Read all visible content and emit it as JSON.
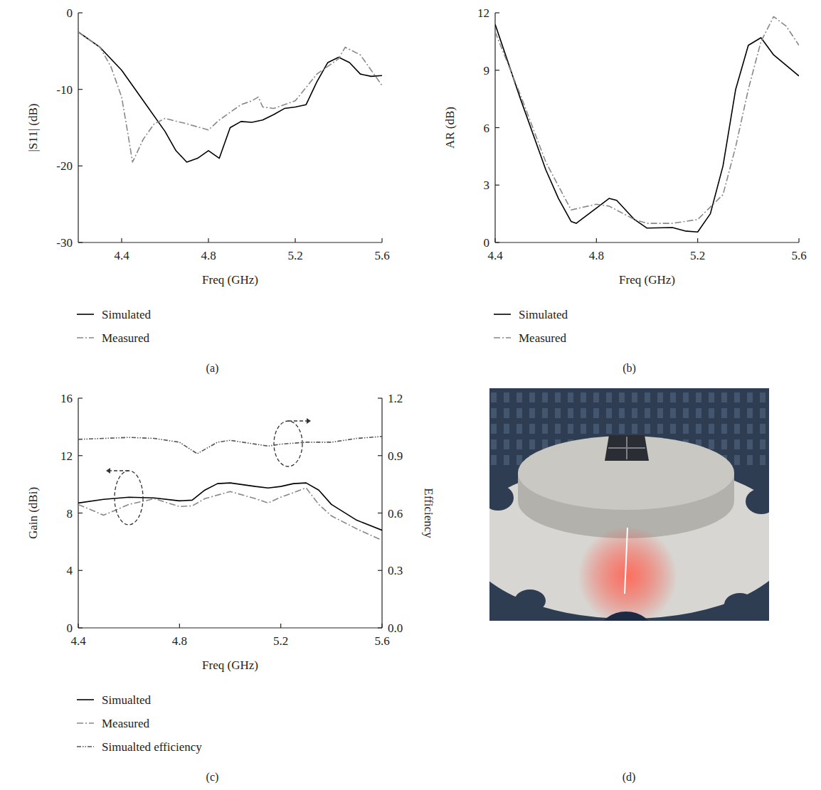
{
  "chart_data": [
    {
      "type": "line",
      "title": "(a)",
      "xlabel": "Freq (GHz)",
      "ylabel": "|S11| (dB)",
      "xlim": [
        4.2,
        5.6
      ],
      "ylim": [
        -30,
        0
      ],
      "xticks": [
        4.4,
        4.8,
        5.2,
        5.6
      ],
      "yticks": [
        -30,
        -20,
        -10,
        0
      ],
      "legend": "bottom",
      "series": [
        {
          "name": "Simulated",
          "color": "#000000",
          "line_style": "solid",
          "x": [
            4.2,
            4.3,
            4.4,
            4.5,
            4.6,
            4.65,
            4.7,
            4.75,
            4.8,
            4.85,
            4.9,
            4.95,
            5.0,
            5.05,
            5.1,
            5.15,
            5.2,
            5.25,
            5.3,
            5.35,
            5.4,
            5.45,
            5.5,
            5.55,
            5.6
          ],
          "values": [
            -2.5,
            -4.5,
            -7.5,
            -11.5,
            -15.5,
            -18,
            -19.5,
            -19,
            -18,
            -19,
            -15,
            -14.2,
            -14.3,
            -14,
            -13.3,
            -12.5,
            -12.3,
            -12,
            -9,
            -6.5,
            -5.8,
            -6.5,
            -8,
            -8.3,
            -8.2
          ]
        },
        {
          "name": "Measured",
          "color": "#888888",
          "line_style": "dashdot",
          "x": [
            4.2,
            4.3,
            4.35,
            4.4,
            4.43,
            4.45,
            4.5,
            4.55,
            4.6,
            4.7,
            4.8,
            4.85,
            4.9,
            4.95,
            5.0,
            5.03,
            5.05,
            5.1,
            5.2,
            5.3,
            5.4,
            5.43,
            5.5,
            5.6
          ],
          "values": [
            -2.5,
            -4.5,
            -7,
            -11,
            -16,
            -19.5,
            -16.5,
            -14.5,
            -13.8,
            -14.5,
            -15.3,
            -14,
            -13,
            -12,
            -11.5,
            -11,
            -12.3,
            -12.5,
            -11.5,
            -8,
            -6,
            -4.5,
            -5.5,
            -9.5
          ]
        }
      ]
    },
    {
      "type": "line",
      "title": "(b)",
      "xlabel": "Freq (GHz)",
      "ylabel": "AR (dB)",
      "xlim": [
        4.4,
        5.6
      ],
      "ylim": [
        0,
        12
      ],
      "xticks": [
        4.4,
        4.8,
        5.2,
        5.6
      ],
      "yticks": [
        0,
        3,
        6,
        9,
        12
      ],
      "legend": "bottom",
      "series": [
        {
          "name": "Simulated",
          "color": "#000000",
          "line_style": "solid",
          "x": [
            4.4,
            4.5,
            4.6,
            4.65,
            4.7,
            4.72,
            4.8,
            4.85,
            4.88,
            4.95,
            5.0,
            5.1,
            5.15,
            5.2,
            5.25,
            5.3,
            5.35,
            5.4,
            5.45,
            5.5,
            5.6
          ],
          "values": [
            11.4,
            7.5,
            3.8,
            2.3,
            1.1,
            1.0,
            1.8,
            2.3,
            2.2,
            1.2,
            0.75,
            0.78,
            0.6,
            0.55,
            1.5,
            4,
            8,
            10.3,
            10.7,
            9.8,
            8.7
          ]
        },
        {
          "name": "Measured",
          "color": "#888888",
          "line_style": "dashdot",
          "x": [
            4.4,
            4.5,
            4.6,
            4.7,
            4.8,
            4.85,
            4.95,
            5.0,
            5.1,
            5.2,
            5.3,
            5.35,
            5.4,
            5.45,
            5.5,
            5.55,
            5.6
          ],
          "values": [
            11,
            7.7,
            4.2,
            1.7,
            2.0,
            1.9,
            1.2,
            1.0,
            1.0,
            1.2,
            2.5,
            5,
            8,
            10.5,
            11.8,
            11.3,
            10.3
          ]
        }
      ]
    },
    {
      "type": "line",
      "title": "(c)",
      "xlabel": "Freq (GHz)",
      "ylabel": "Gain (dBi)",
      "y2label": "Efficiency",
      "xlim": [
        4.4,
        5.6
      ],
      "ylim": [
        0,
        16
      ],
      "xticks": [
        4.4,
        4.8,
        5.2,
        5.6
      ],
      "yticks": [
        0,
        4,
        8,
        12,
        16
      ],
      "y2lim": [
        0,
        1.2
      ],
      "y2ticks": [
        {
          "value": 0,
          "label": "0.0"
        },
        0.3,
        0.6,
        0.9,
        1.2
      ],
      "legend": "bottom",
      "series": [
        {
          "name": "Simualted",
          "color": "#000000",
          "line_style": "solid",
          "x": [
            4.4,
            4.5,
            4.6,
            4.7,
            4.8,
            4.85,
            4.9,
            4.95,
            5.0,
            5.1,
            5.15,
            5.2,
            5.25,
            5.3,
            5.35,
            5.4,
            5.5,
            5.6
          ],
          "values": [
            8.7,
            8.95,
            9.1,
            9.05,
            8.85,
            8.9,
            9.6,
            10.05,
            10.1,
            9.85,
            9.75,
            9.85,
            10.05,
            10.1,
            9.6,
            8.6,
            7.5,
            6.8
          ]
        },
        {
          "name": "Measured",
          "color": "#888888",
          "line_style": "dashdot",
          "x": [
            4.4,
            4.5,
            4.6,
            4.7,
            4.8,
            4.85,
            4.9,
            5.0,
            5.1,
            5.15,
            5.2,
            5.3,
            5.35,
            5.4,
            5.5,
            5.6
          ],
          "values": [
            8.6,
            7.85,
            8.6,
            9.0,
            8.45,
            8.5,
            9.0,
            9.5,
            9.0,
            8.7,
            9.1,
            9.75,
            8.6,
            7.8,
            6.9,
            6.1
          ]
        },
        {
          "name": "Simualted efficiency",
          "color": "#555555",
          "line_style": "dashdotdot",
          "axis": "y2",
          "x": [
            4.4,
            4.5,
            4.6,
            4.7,
            4.8,
            4.87,
            4.95,
            5.0,
            5.1,
            5.15,
            5.2,
            5.3,
            5.4,
            5.5,
            5.6
          ],
          "values": [
            0.985,
            0.99,
            0.995,
            0.99,
            0.97,
            0.91,
            0.97,
            0.98,
            0.96,
            0.95,
            0.96,
            0.97,
            0.97,
            0.99,
            1.0
          ]
        }
      ]
    }
  ],
  "image": {
    "caption": "(d)"
  }
}
